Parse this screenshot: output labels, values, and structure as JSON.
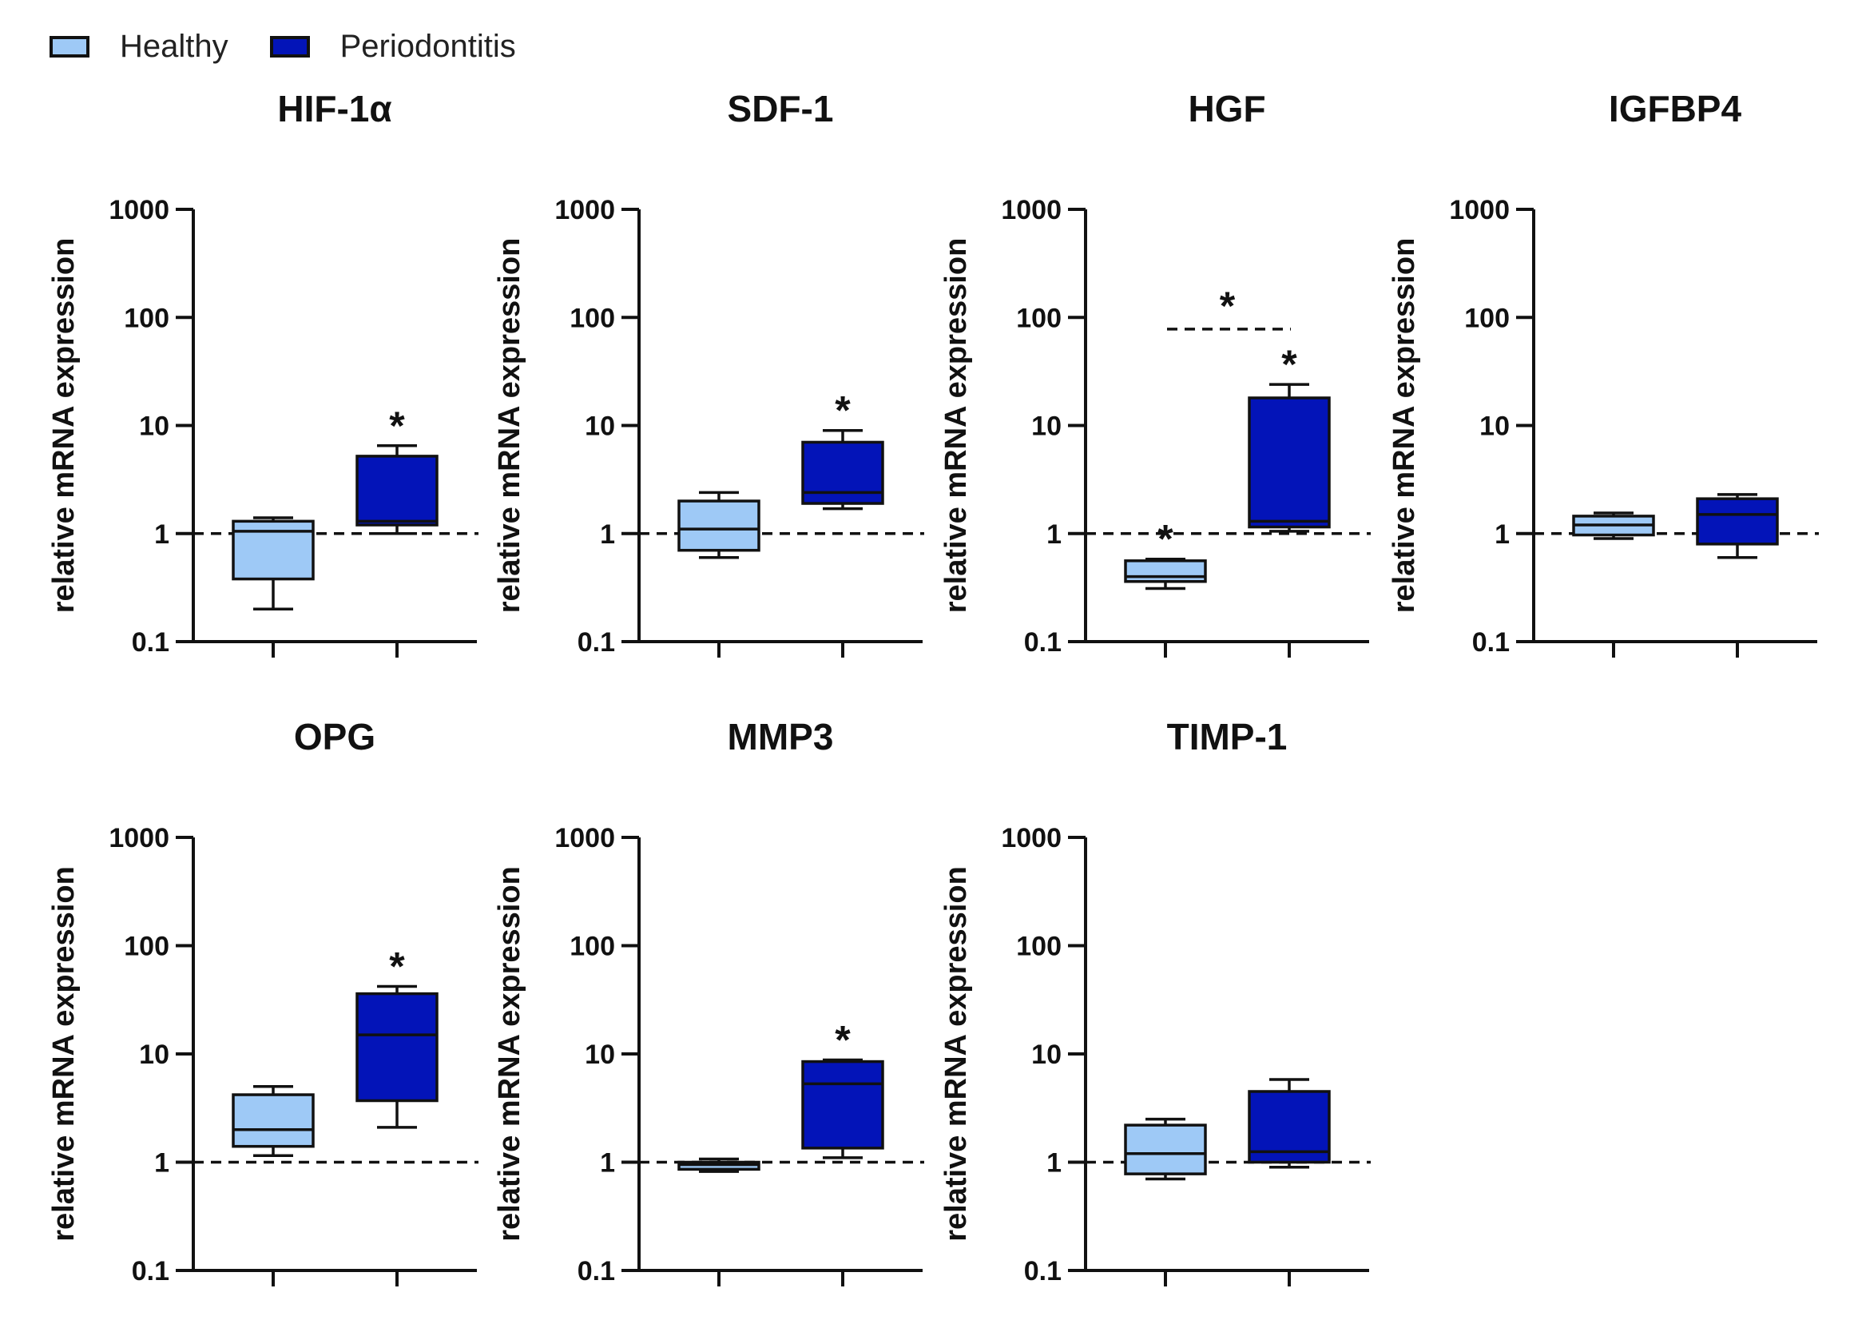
{
  "legend": {
    "items": [
      {
        "label": "Healthy",
        "color": "#9ec9f6"
      },
      {
        "label": "Periodontitis",
        "color": "#0314b8"
      }
    ]
  },
  "chart_data": [
    {
      "type": "box",
      "title": "HIF-1α",
      "ylabel": "relative mRNA expression",
      "yscale": "log",
      "ylim": [
        0.1,
        1000
      ],
      "yticks": [
        "0.1",
        "1",
        "10",
        "100",
        "1000"
      ],
      "reference_line": 1,
      "groups": [
        {
          "name": "Healthy",
          "min": 0.2,
          "q1": 0.38,
          "median": 1.05,
          "q3": 1.3,
          "max": 1.4,
          "significant": false
        },
        {
          "name": "Periodontitis",
          "min": 1.0,
          "q1": 1.2,
          "median": 1.3,
          "q3": 5.2,
          "max": 6.5,
          "significant": true
        }
      ],
      "bracket": null
    },
    {
      "type": "box",
      "title": "SDF-1",
      "ylabel": "relative mRNA expression",
      "yscale": "log",
      "ylim": [
        0.1,
        1000
      ],
      "yticks": [
        "0.1",
        "1",
        "10",
        "100",
        "1000"
      ],
      "reference_line": 1,
      "groups": [
        {
          "name": "Healthy",
          "min": 0.6,
          "q1": 0.7,
          "median": 1.1,
          "q3": 2.0,
          "max": 2.4,
          "significant": false
        },
        {
          "name": "Periodontitis",
          "min": 1.7,
          "q1": 1.9,
          "median": 2.4,
          "q3": 7.0,
          "max": 9.0,
          "significant": true
        }
      ],
      "bracket": null
    },
    {
      "type": "box",
      "title": "HGF",
      "ylabel": "relative mRNA expression",
      "yscale": "log",
      "ylim": [
        0.1,
        1000
      ],
      "yticks": [
        "0.1",
        "1",
        "10",
        "100",
        "1000"
      ],
      "reference_line": 1,
      "groups": [
        {
          "name": "Healthy",
          "min": 0.31,
          "q1": 0.36,
          "median": 0.4,
          "q3": 0.56,
          "max": 0.58,
          "significant": true
        },
        {
          "name": "Periodontitis",
          "min": 1.05,
          "q1": 1.15,
          "median": 1.3,
          "q3": 18,
          "max": 24,
          "significant": true
        }
      ],
      "bracket": {
        "y": 78,
        "label": "*"
      }
    },
    {
      "type": "box",
      "title": "IGFBP4",
      "ylabel": "relative mRNA expression",
      "yscale": "log",
      "ylim": [
        0.1,
        1000
      ],
      "yticks": [
        "0.1",
        "1",
        "10",
        "100",
        "1000"
      ],
      "reference_line": 1,
      "groups": [
        {
          "name": "Healthy",
          "min": 0.9,
          "q1": 0.97,
          "median": 1.2,
          "q3": 1.45,
          "max": 1.55,
          "significant": false
        },
        {
          "name": "Periodontitis",
          "min": 0.6,
          "q1": 0.8,
          "median": 1.5,
          "q3": 2.1,
          "max": 2.3,
          "significant": false
        }
      ],
      "bracket": null
    },
    {
      "type": "box",
      "title": "OPG",
      "ylabel": "relative mRNA expression",
      "yscale": "log",
      "ylim": [
        0.1,
        1000
      ],
      "yticks": [
        "0.1",
        "1",
        "10",
        "100",
        "1000"
      ],
      "reference_line": 1,
      "groups": [
        {
          "name": "Healthy",
          "min": 1.15,
          "q1": 1.4,
          "median": 2.0,
          "q3": 4.2,
          "max": 5.0,
          "significant": false
        },
        {
          "name": "Periodontitis",
          "min": 2.1,
          "q1": 3.7,
          "median": 15,
          "q3": 36,
          "max": 42,
          "significant": true
        }
      ],
      "bracket": null
    },
    {
      "type": "box",
      "title": "MMP3",
      "ylabel": "relative mRNA expression",
      "yscale": "log",
      "ylim": [
        0.1,
        1000
      ],
      "yticks": [
        "0.1",
        "1",
        "10",
        "100",
        "1000"
      ],
      "reference_line": 1,
      "groups": [
        {
          "name": "Healthy",
          "min": 0.82,
          "q1": 0.86,
          "median": 0.95,
          "q3": 1.0,
          "max": 1.07,
          "significant": false
        },
        {
          "name": "Periodontitis",
          "min": 1.1,
          "q1": 1.35,
          "median": 5.3,
          "q3": 8.5,
          "max": 8.8,
          "significant": true
        }
      ],
      "bracket": null
    },
    {
      "type": "box",
      "title": "TIMP-1",
      "ylabel": "relative mRNA expression",
      "yscale": "log",
      "ylim": [
        0.1,
        1000
      ],
      "yticks": [
        "0.1",
        "1",
        "10",
        "100",
        "1000"
      ],
      "reference_line": 1,
      "groups": [
        {
          "name": "Healthy",
          "min": 0.7,
          "q1": 0.78,
          "median": 1.2,
          "q3": 2.2,
          "max": 2.5,
          "significant": false
        },
        {
          "name": "Periodontitis",
          "min": 0.9,
          "q1": 1.0,
          "median": 1.25,
          "q3": 4.5,
          "max": 5.8,
          "significant": false
        }
      ],
      "bracket": null
    }
  ]
}
